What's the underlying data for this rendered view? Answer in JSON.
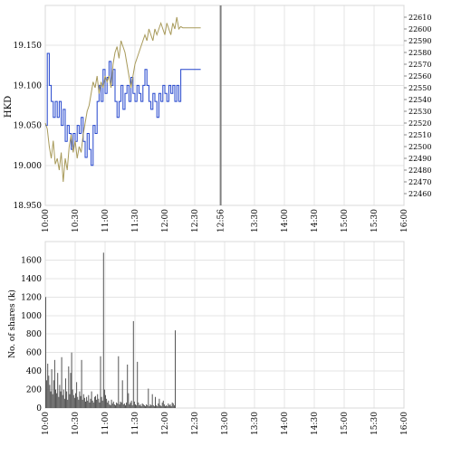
{
  "chart_data": [
    {
      "type": "line",
      "ylabel": "HKD",
      "x_ticks": [
        "10:00",
        "10:30",
        "11:00",
        "11:30",
        "12:00",
        "12:30",
        "12:56",
        "13:30",
        "14:00",
        "14:30",
        "15:00",
        "15:30",
        "16:00"
      ],
      "ylim_left": [
        18.95,
        19.2
      ],
      "yticks_left": [
        "18.950",
        "19.000",
        "19.050",
        "19.100",
        "19.150"
      ],
      "ylim_right": [
        22450,
        22620
      ],
      "yticks_right": [
        "22460",
        "22470",
        "22480",
        "22490",
        "22500",
        "22510",
        "22520",
        "22530",
        "22540",
        "22550",
        "22560",
        "22570",
        "22580",
        "22590",
        "22600",
        "22610"
      ],
      "grid": true,
      "colors": {
        "stock": "#2244cc",
        "index": "#a89a5a",
        "current_marker": "#808080"
      },
      "current_time": "12:56",
      "series": [
        {
          "axis": "left",
          "points": [
            [
              0,
              19.05
            ],
            [
              2,
              19.14
            ],
            [
              4,
              19.1
            ],
            [
              6,
              19.08
            ],
            [
              8,
              19.06
            ],
            [
              10,
              19.08
            ],
            [
              12,
              19.06
            ],
            [
              14,
              19.08
            ],
            [
              16,
              19.05
            ],
            [
              18,
              19.07
            ],
            [
              20,
              19.03
            ],
            [
              22,
              19.05
            ],
            [
              24,
              19.04
            ],
            [
              26,
              19.02
            ],
            [
              28,
              19.04
            ],
            [
              30,
              19.03
            ],
            [
              32,
              19.05
            ],
            [
              34,
              19.04
            ],
            [
              36,
              19.06
            ],
            [
              38,
              19.03
            ],
            [
              40,
              19.01
            ],
            [
              42,
              19.04
            ],
            [
              44,
              19.02
            ],
            [
              46,
              19.0
            ],
            [
              48,
              19.05
            ],
            [
              50,
              19.04
            ],
            [
              52,
              19.08
            ],
            [
              54,
              19.1
            ],
            [
              56,
              19.08
            ],
            [
              58,
              19.12
            ],
            [
              60,
              19.09
            ],
            [
              62,
              19.11
            ],
            [
              64,
              19.13
            ],
            [
              66,
              19.1
            ],
            [
              68,
              19.12
            ],
            [
              70,
              19.08
            ],
            [
              72,
              19.06
            ],
            [
              74,
              19.08
            ],
            [
              76,
              19.1
            ],
            [
              78,
              19.07
            ],
            [
              80,
              19.09
            ],
            [
              82,
              19.1
            ],
            [
              84,
              19.08
            ],
            [
              86,
              19.11
            ],
            [
              88,
              19.09
            ],
            [
              90,
              19.08
            ],
            [
              92,
              19.1
            ],
            [
              94,
              19.09
            ],
            [
              96,
              19.08
            ],
            [
              98,
              19.1
            ],
            [
              100,
              19.12
            ],
            [
              102,
              19.1
            ],
            [
              104,
              19.08
            ],
            [
              106,
              19.07
            ],
            [
              108,
              19.09
            ],
            [
              110,
              19.08
            ],
            [
              112,
              19.06
            ],
            [
              114,
              19.09
            ],
            [
              116,
              19.08
            ],
            [
              118,
              19.1
            ],
            [
              120,
              19.09
            ],
            [
              122,
              19.08
            ],
            [
              124,
              19.1
            ],
            [
              126,
              19.09
            ],
            [
              128,
              19.1
            ],
            [
              130,
              19.08
            ],
            [
              132,
              19.1
            ],
            [
              134,
              19.08
            ],
            [
              136,
              19.12
            ],
            [
              138,
              19.12
            ],
            [
              140,
              19.12
            ],
            [
              156,
              19.12
            ]
          ]
        },
        {
          "axis": "right",
          "points": [
            [
              0,
              22520
            ],
            [
              2,
              22515
            ],
            [
              4,
              22500
            ],
            [
              6,
              22490
            ],
            [
              8,
              22505
            ],
            [
              10,
              22485
            ],
            [
              12,
              22490
            ],
            [
              14,
              22480
            ],
            [
              16,
              22495
            ],
            [
              18,
              22470
            ],
            [
              20,
              22490
            ],
            [
              22,
              22480
            ],
            [
              24,
              22500
            ],
            [
              26,
              22510
            ],
            [
              28,
              22495
            ],
            [
              30,
              22505
            ],
            [
              32,
              22490
            ],
            [
              34,
              22500
            ],
            [
              36,
              22495
            ],
            [
              38,
              22510
            ],
            [
              40,
              22520
            ],
            [
              42,
              22530
            ],
            [
              44,
              22535
            ],
            [
              46,
              22545
            ],
            [
              48,
              22555
            ],
            [
              50,
              22550
            ],
            [
              52,
              22560
            ],
            [
              54,
              22545
            ],
            [
              56,
              22555
            ],
            [
              58,
              22550
            ],
            [
              60,
              22560
            ],
            [
              62,
              22555
            ],
            [
              64,
              22560
            ],
            [
              66,
              22550
            ],
            [
              68,
              22570
            ],
            [
              70,
              22580
            ],
            [
              72,
              22585
            ],
            [
              74,
              22575
            ],
            [
              76,
              22590
            ],
            [
              78,
              22585
            ],
            [
              80,
              22580
            ],
            [
              82,
              22570
            ],
            [
              84,
              22560
            ],
            [
              86,
              22550
            ],
            [
              88,
              22560
            ],
            [
              90,
              22570
            ],
            [
              92,
              22575
            ],
            [
              94,
              22580
            ],
            [
              96,
              22585
            ],
            [
              98,
              22590
            ],
            [
              100,
              22595
            ],
            [
              102,
              22590
            ],
            [
              104,
              22600
            ],
            [
              106,
              22595
            ],
            [
              108,
              22590
            ],
            [
              110,
              22600
            ],
            [
              112,
              22595
            ],
            [
              114,
              22600
            ],
            [
              116,
              22605
            ],
            [
              118,
              22600
            ],
            [
              120,
              22595
            ],
            [
              122,
              22605
            ],
            [
              124,
              22600
            ],
            [
              126,
              22595
            ],
            [
              128,
              22605
            ],
            [
              130,
              22600
            ],
            [
              132,
              22610
            ],
            [
              134,
              22600
            ],
            [
              136,
              22602
            ],
            [
              138,
              22601
            ],
            [
              156,
              22601
            ]
          ]
        }
      ]
    },
    {
      "type": "bar",
      "ylabel": "No. of shares (k)",
      "x_ticks": [
        "10:00",
        "10:30",
        "11:00",
        "11:30",
        "12:00",
        "12:30",
        "13:00",
        "13:30",
        "14:00",
        "14:30",
        "15:00",
        "15:30",
        "16:00"
      ],
      "ylim": [
        0,
        1800
      ],
      "yticks": [
        "0",
        "200",
        "400",
        "600",
        "800",
        "1000",
        "1200",
        "1400",
        "1600"
      ],
      "grid": true,
      "colors": {
        "bar": "#555555"
      },
      "x": [
        0,
        1,
        2,
        3,
        4,
        5,
        6,
        7,
        8,
        9,
        10,
        11,
        12,
        13,
        14,
        15,
        16,
        17,
        18,
        19,
        20,
        21,
        22,
        23,
        24,
        25,
        26,
        27,
        28,
        29,
        30,
        31,
        32,
        33,
        34,
        35,
        36,
        37,
        38,
        39,
        40,
        41,
        42,
        43,
        44,
        45,
        46,
        47,
        48,
        49,
        50,
        51,
        52,
        53,
        54,
        55,
        56,
        57,
        58,
        59,
        60,
        61,
        62,
        63,
        64,
        65,
        66,
        67,
        68,
        69,
        70,
        71,
        72,
        73,
        74,
        75,
        76,
        77,
        78,
        79,
        80,
        81,
        82,
        83,
        84,
        85,
        86,
        87,
        88,
        89,
        90,
        91,
        92,
        93,
        94,
        95,
        96,
        97,
        98,
        99,
        100,
        101,
        102,
        103,
        104,
        105,
        106,
        107,
        108,
        109,
        110,
        111,
        112,
        113,
        114,
        115,
        116,
        117,
        118,
        119,
        120,
        121,
        122,
        123,
        124,
        125,
        126,
        127,
        128,
        129,
        130,
        131,
        132,
        133,
        134,
        135,
        136,
        137,
        138
      ],
      "values": [
        1200,
        300,
        480,
        350,
        250,
        180,
        420,
        150,
        300,
        520,
        200,
        160,
        380,
        120,
        250,
        180,
        550,
        140,
        200,
        100,
        320,
        180,
        90,
        450,
        150,
        380,
        600,
        200,
        140,
        110,
        160,
        280,
        120,
        90,
        180,
        130,
        520,
        90,
        150,
        110,
        70,
        120,
        80,
        140,
        60,
        100,
        180,
        80,
        60,
        120,
        130,
        90,
        150,
        100,
        60,
        560,
        120,
        80,
        1680,
        200,
        140,
        100,
        60,
        80,
        40,
        30,
        90,
        50,
        70,
        40,
        30,
        60,
        50,
        560,
        40,
        70,
        60,
        300,
        40,
        50,
        30,
        60,
        470,
        160,
        40,
        60,
        80,
        30,
        940,
        70,
        40,
        30,
        500,
        60,
        30,
        40,
        20,
        50,
        40,
        30,
        20,
        40,
        30,
        210,
        20,
        40,
        30,
        150,
        30,
        20,
        120,
        30,
        20,
        50,
        100,
        30,
        20,
        60,
        80,
        40,
        20,
        30,
        20,
        50,
        30,
        40,
        20,
        60,
        50,
        30,
        840,
        0,
        0,
        0,
        0,
        0,
        0,
        0,
        0
      ]
    }
  ]
}
